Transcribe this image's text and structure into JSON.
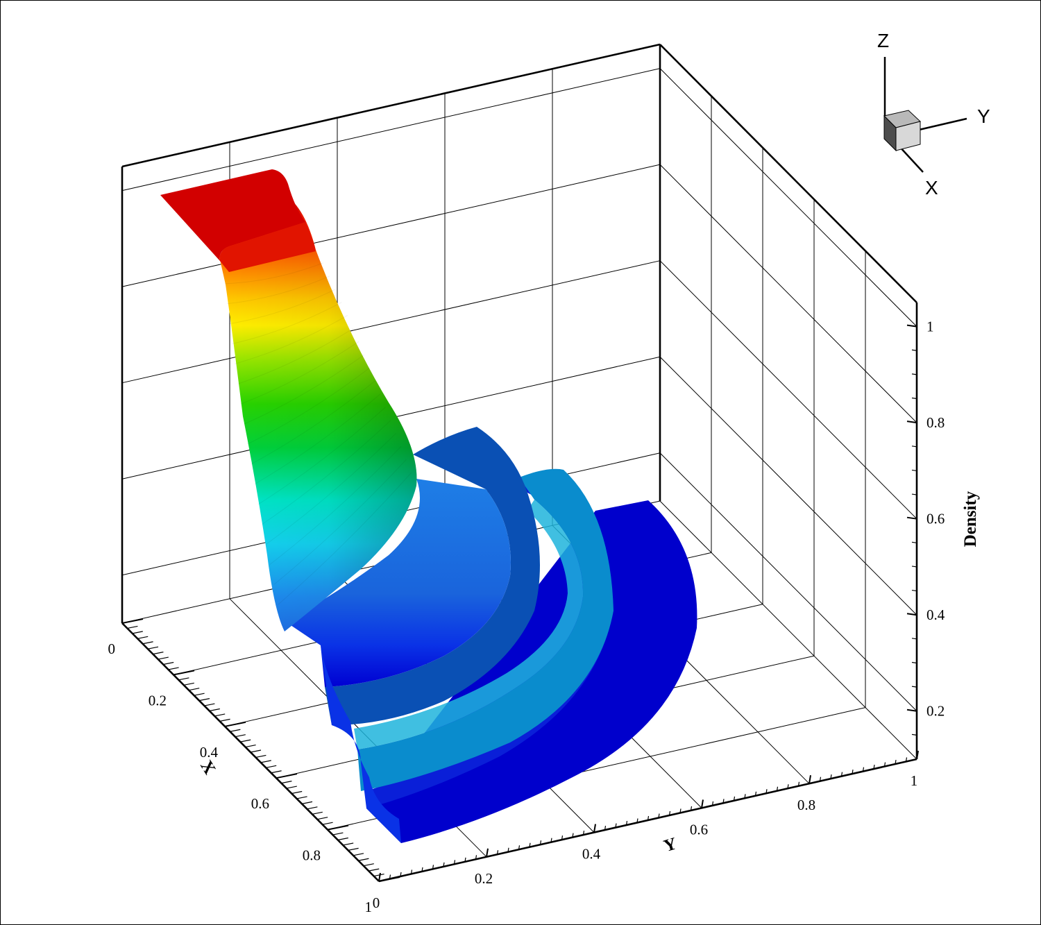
{
  "chart_data": {
    "type": "surface3d",
    "title": "",
    "xlabel": "X",
    "ylabel": "Y",
    "zlabel": "Density",
    "xlim": [
      0,
      1
    ],
    "ylim": [
      0,
      1
    ],
    "zlim": [
      0.1,
      1.05
    ],
    "x_ticks": [
      "0",
      "0.2",
      "0.4",
      "0.6",
      "0.8",
      "1"
    ],
    "y_ticks": [
      "0",
      "0.2",
      "0.4",
      "0.6",
      "0.8",
      "1"
    ],
    "z_ticks": [
      "0.2",
      "0.4",
      "0.6",
      "0.8",
      "1"
    ],
    "grid": true,
    "colormap": [
      "#0000cc",
      "#0a3cf0",
      "#1e78e8",
      "#14b4e6",
      "#00e6e6",
      "#00dc64",
      "#00c800",
      "#96e600",
      "#ffe600",
      "#ff9600",
      "#ff3200",
      "#d20000"
    ],
    "surface_description_values": {
      "plateau_density": 1.0,
      "plateau_region_r": [
        0,
        0.1
      ],
      "falloff_region_r": [
        0.1,
        0.42
      ],
      "shoulder_density": 0.45,
      "outer_density": 0.125
    }
  },
  "triad": {
    "x": "X",
    "y": "Y",
    "z": "Z"
  }
}
